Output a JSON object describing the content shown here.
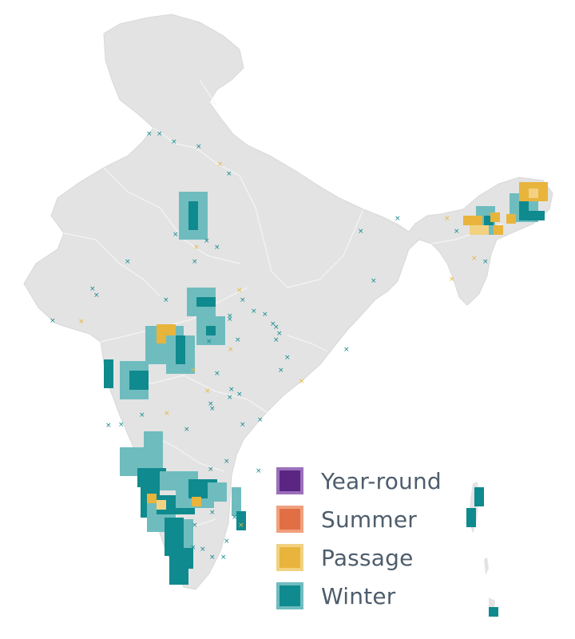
{
  "map": {
    "land_color": "#e3e3e3",
    "border_color": "#f6f6f6"
  },
  "legend": {
    "items": [
      {
        "label": "Year-round",
        "fill": "#5a2682",
        "border": "#9b6fba"
      },
      {
        "label": "Summer",
        "fill": "#e07044",
        "border": "#f0a07e"
      },
      {
        "label": "Passage",
        "fill": "#e8b43c",
        "border": "#f2d281"
      },
      {
        "label": "Winter",
        "fill": "#0f8a8e",
        "border": "#6fbcbf"
      }
    ]
  },
  "season_colors": {
    "winter_dark": "#0f8a8e",
    "winter_light": "#6fbcbf",
    "passage_dark": "#e8b43c",
    "passage_light": "#f2d281"
  }
}
